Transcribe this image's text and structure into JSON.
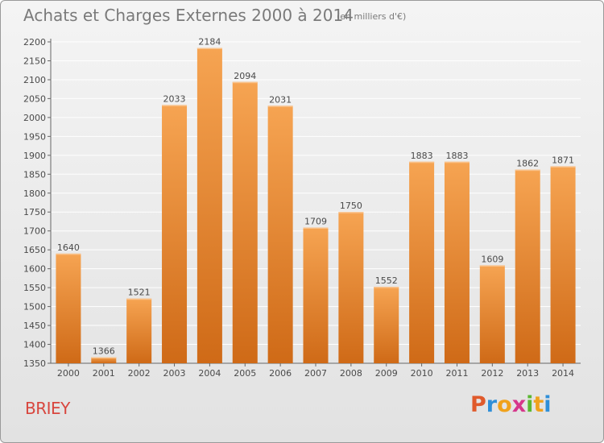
{
  "header": {
    "title": "Achats et Charges Externes 2000 à 2014",
    "unit": "(en milliers d'€)"
  },
  "footer": {
    "place": "BRIEY",
    "logo_letters": [
      "P",
      "r",
      "o",
      "x",
      "i",
      "t",
      "i"
    ],
    "logo_colors": [
      "#e05a2b",
      "#2f8fd8",
      "#f0a21c",
      "#d6378b",
      "#5bb832",
      "#f0a21c",
      "#2f8fd8"
    ]
  },
  "colors": {
    "bar_top": "#f6a452",
    "bar_bottom": "#cf6a17",
    "grid": "#ffffff",
    "text": "#4a4a4a"
  },
  "chart_data": {
    "type": "bar",
    "categories": [
      "2000",
      "2001",
      "2002",
      "2003",
      "2004",
      "2005",
      "2006",
      "2007",
      "2008",
      "2009",
      "2010",
      "2011",
      "2012",
      "2013",
      "2014"
    ],
    "values": [
      1640,
      1366,
      1521,
      2033,
      2184,
      2094,
      2031,
      1709,
      1750,
      1552,
      1883,
      1883,
      1609,
      1862,
      1871
    ],
    "data_labels": [
      "1640",
      "1366",
      "1521",
      "2033",
      "2184",
      "2094",
      "2031",
      "1709",
      "1750",
      "1552",
      "1883",
      "1883",
      "1609",
      "1862",
      "1871"
    ],
    "title": "Achats et Charges Externes 2000 à 2014",
    "unit": "(en milliers d'€)",
    "xlabel": "",
    "ylabel": "",
    "ylim": [
      1350,
      2200
    ],
    "yticks": [
      1350,
      1400,
      1450,
      1500,
      1550,
      1600,
      1650,
      1700,
      1750,
      1800,
      1850,
      1900,
      1950,
      2000,
      2050,
      2100,
      2150,
      2200
    ],
    "grid": true,
    "legend": "none"
  }
}
